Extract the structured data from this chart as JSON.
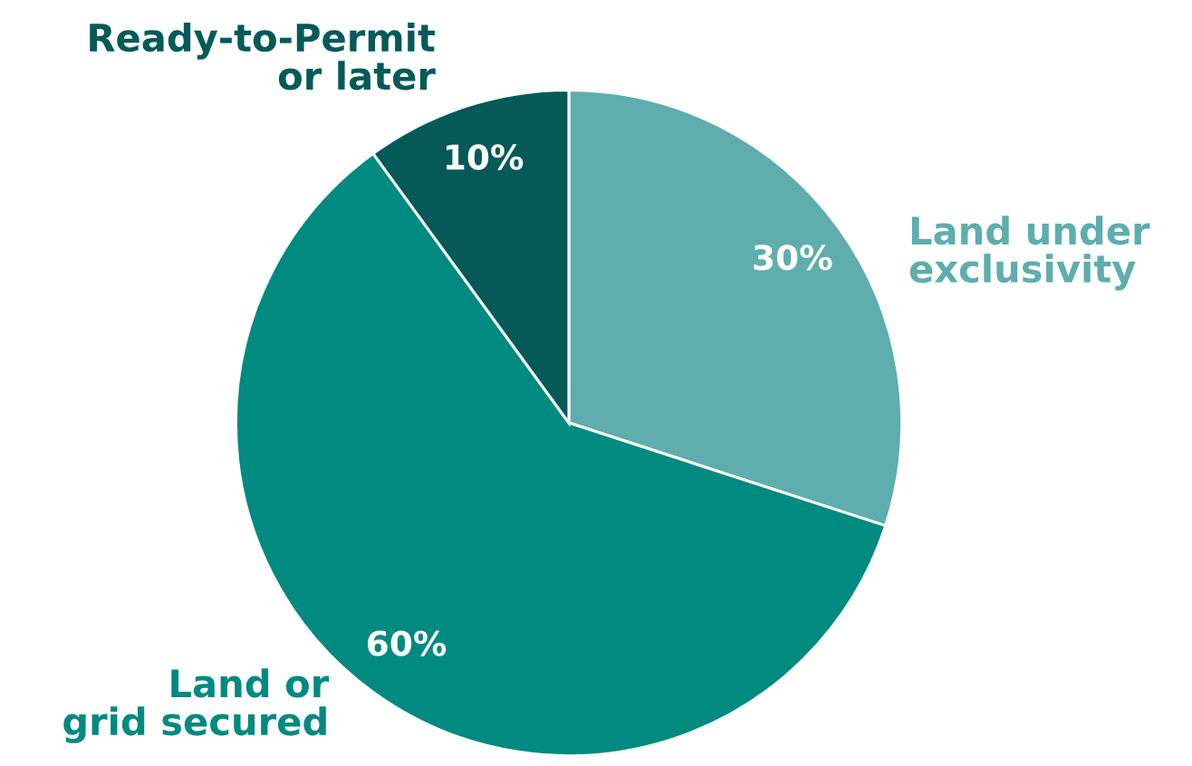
{
  "chart_data": {
    "type": "pie",
    "categories": [
      "Land under\nexclusivity",
      "Land or\ngrid secured",
      "Ready-to-Permit\nor later"
    ],
    "values": [
      30,
      60,
      10
    ],
    "colors": [
      "#5fadad",
      "#008a80",
      "#055a58"
    ],
    "value_labels": [
      "30%",
      "60%",
      "10%"
    ],
    "legend": false
  }
}
